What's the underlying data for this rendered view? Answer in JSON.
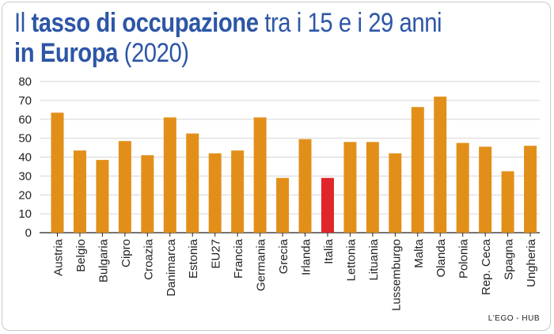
{
  "title": {
    "part1": "Il ",
    "part2_bold": "tasso di occupazione",
    "part3": " tra i 15 e i 29 anni",
    "part4_bold": "in Europa",
    "part5": " (2020)"
  },
  "credit": "L'EGO - HUB",
  "colors": {
    "bar": "#e28f1a",
    "highlight": "#e0262a",
    "grid": "#d6d6d6",
    "axis": "#222222",
    "title": "#2d56a6"
  },
  "chart_data": {
    "type": "bar",
    "categories": [
      "Austria",
      "Belgio",
      "Bulgaria",
      "Cipro",
      "Croazia",
      "Danimarca",
      "Estonia",
      "EU27",
      "Francia",
      "Germania",
      "Grecia",
      "Irlanda",
      "Italia",
      "Lettonia",
      "Lituania",
      "Lussemburgo",
      "Malta",
      "Olanda",
      "Polonia",
      "Rep. Ceca",
      "Spagna",
      "Ungheria"
    ],
    "values": [
      63.5,
      43.5,
      38.5,
      48.5,
      41,
      61,
      52.5,
      42,
      43.5,
      61,
      29,
      49.5,
      29,
      48,
      48,
      42,
      66.5,
      72,
      47.5,
      45.5,
      32.5,
      46
    ],
    "highlight": "Italia",
    "ylim": [
      0,
      80
    ],
    "yticks": [
      0,
      10,
      20,
      30,
      40,
      50,
      60,
      70,
      80
    ],
    "grid": true
  }
}
